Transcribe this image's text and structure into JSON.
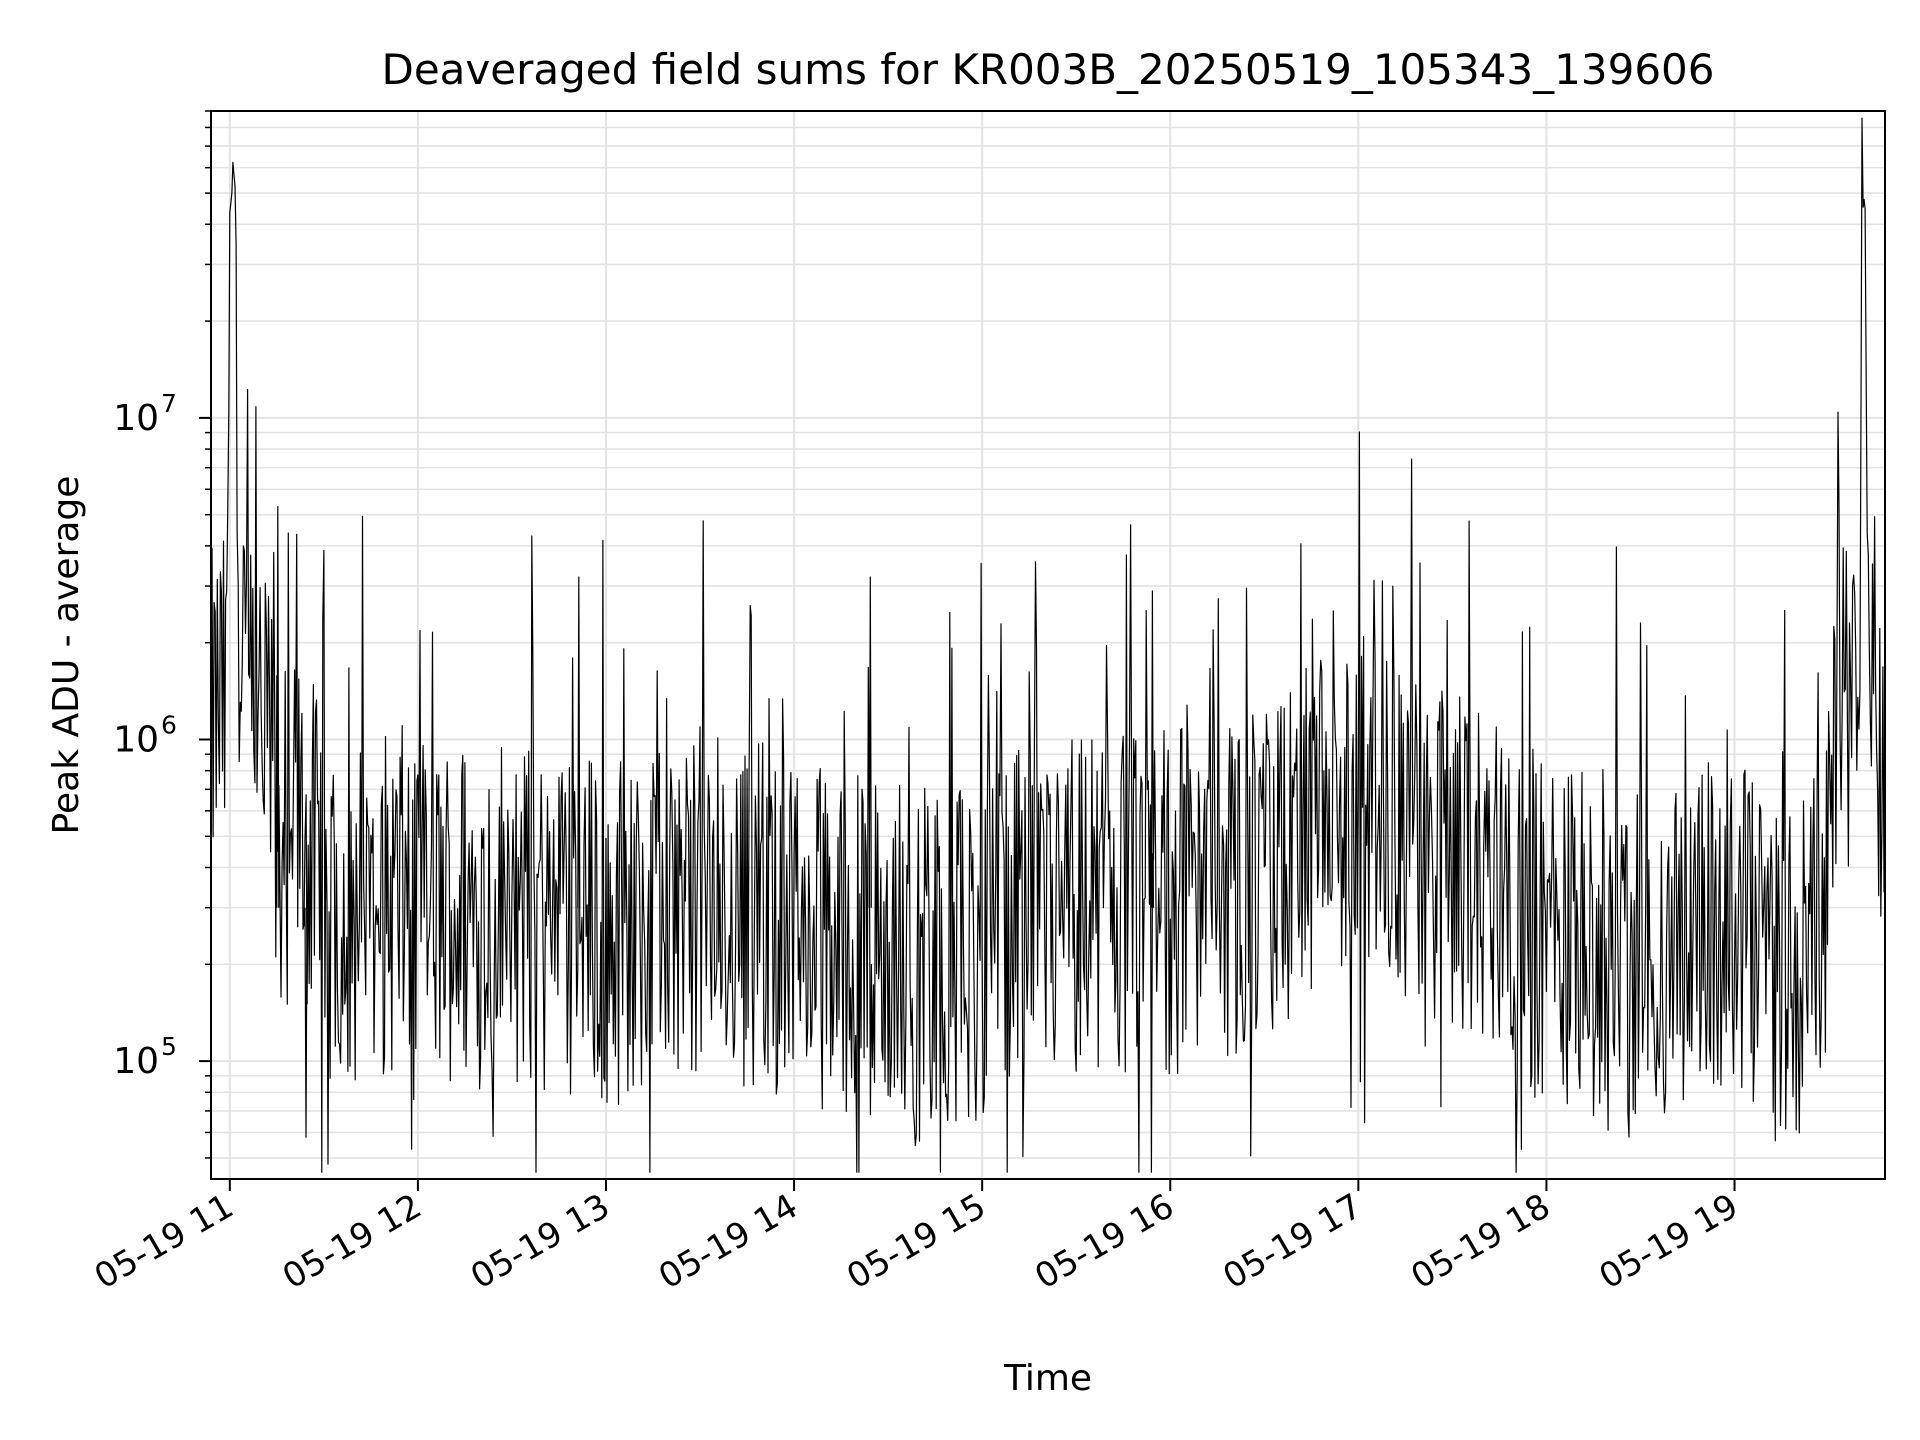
{
  "chart_data": {
    "type": "line",
    "title": "Deaveraged field sums for KR003B_20250519_105343_139606",
    "xlabel": "Time",
    "ylabel": "Peak ADU - average",
    "yscale": "log",
    "ylim": [
      43000,
      90000000
    ],
    "xlim": [
      "2025-05-19 10:54",
      "2025-05-19 19:48"
    ],
    "x_ticks": [
      "05-19 11",
      "05-19 12",
      "05-19 13",
      "05-19 14",
      "05-19 15",
      "05-19 16",
      "05-19 17",
      "05-19 18",
      "05-19 19"
    ],
    "y_ticks": [
      {
        "base": "10",
        "exp": "5",
        "value": 100000
      },
      {
        "base": "10",
        "exp": "6",
        "value": 1000000
      },
      {
        "base": "10",
        "exp": "7",
        "value": 10000000
      }
    ],
    "grid": true,
    "line_color": "#000000",
    "series": [
      {
        "x": [
          "2025-05-19 10:54",
          "2025-05-19 10:57",
          "2025-05-19 10:59",
          "2025-05-19 11:00",
          "2025-05-19 11:01",
          "2025-05-19 11:02",
          "2025-05-19 11:03",
          "2025-05-19 11:05",
          "2025-05-19 11:07",
          "2025-05-19 11:09",
          "2025-05-19 11:11",
          "2025-05-19 11:12",
          "2025-05-19 11:14",
          "2025-05-19 11:17",
          "2025-05-19 11:20",
          "2025-05-19 11:24",
          "2025-05-19 11:30",
          "2025-05-19 11:36",
          "2025-05-19 11:42",
          "2025-05-19 11:48",
          "2025-05-19 11:54",
          "2025-05-19 12:00",
          "2025-05-19 12:10",
          "2025-05-19 12:20",
          "2025-05-19 12:30",
          "2025-05-19 12:40",
          "2025-05-19 12:50",
          "2025-05-19 13:00",
          "2025-05-19 13:10",
          "2025-05-19 13:20",
          "2025-05-19 13:30",
          "2025-05-19 13:40",
          "2025-05-19 13:50",
          "2025-05-19 14:00",
          "2025-05-19 14:10",
          "2025-05-19 14:20",
          "2025-05-19 14:30",
          "2025-05-19 14:40",
          "2025-05-19 14:50",
          "2025-05-19 15:00",
          "2025-05-19 15:10",
          "2025-05-19 15:20",
          "2025-05-19 15:30",
          "2025-05-19 15:40",
          "2025-05-19 15:50",
          "2025-05-19 16:00",
          "2025-05-19 16:10",
          "2025-05-19 16:20",
          "2025-05-19 16:30",
          "2025-05-19 16:40",
          "2025-05-19 16:50",
          "2025-05-19 17:00",
          "2025-05-19 17:10",
          "2025-05-19 17:20",
          "2025-05-19 17:30",
          "2025-05-19 17:40",
          "2025-05-19 17:50",
          "2025-05-19 18:00",
          "2025-05-19 18:10",
          "2025-05-19 18:20",
          "2025-05-19 18:30",
          "2025-05-19 18:40",
          "2025-05-19 18:50",
          "2025-05-19 19:00",
          "2025-05-19 19:10",
          "2025-05-19 19:20",
          "2025-05-19 19:28",
          "2025-05-19 19:32",
          "2025-05-19 19:36",
          "2025-05-19 19:38",
          "2025-05-19 19:40",
          "2025-05-19 19:41",
          "2025-05-19 19:42",
          "2025-05-19 19:43",
          "2025-05-19 19:44",
          "2025-05-19 19:46",
          "2025-05-19 19:48"
        ],
        "values": [
          1100000,
          1300000,
          1200000,
          45000000,
          55000000,
          65000000,
          900000,
          1500000,
          1200000,
          1100000,
          900000,
          1000000,
          1300000,
          400000,
          600000,
          500000,
          350000,
          300000,
          280000,
          300000,
          320000,
          280000,
          300000,
          290000,
          300000,
          270000,
          280000,
          250000,
          270000,
          300000,
          320000,
          280000,
          300000,
          250000,
          240000,
          230000,
          220000,
          200000,
          210000,
          230000,
          260000,
          280000,
          300000,
          320000,
          300000,
          320000,
          330000,
          350000,
          360000,
          450000,
          520000,
          550000,
          500000,
          480000,
          420000,
          380000,
          320000,
          260000,
          230000,
          210000,
          200000,
          210000,
          260000,
          230000,
          200000,
          190000,
          330000,
          1400000,
          1300000,
          1100000,
          1000000,
          45000000,
          40000000,
          1000000,
          1100000,
          900000,
          1200000
        ]
      }
    ],
    "y_max_spikes": [
      {
        "x": "2025-05-19 11:15",
        "y": 5300000
      },
      {
        "x": "2025-05-19 12:51",
        "y": 3200000
      },
      {
        "x": "2025-05-19 14:24",
        "y": 3200000
      },
      {
        "x": "2025-05-19 15:54",
        "y": 2900000
      },
      {
        "x": "2025-05-19 11:24",
        "y": 58000
      }
    ]
  }
}
